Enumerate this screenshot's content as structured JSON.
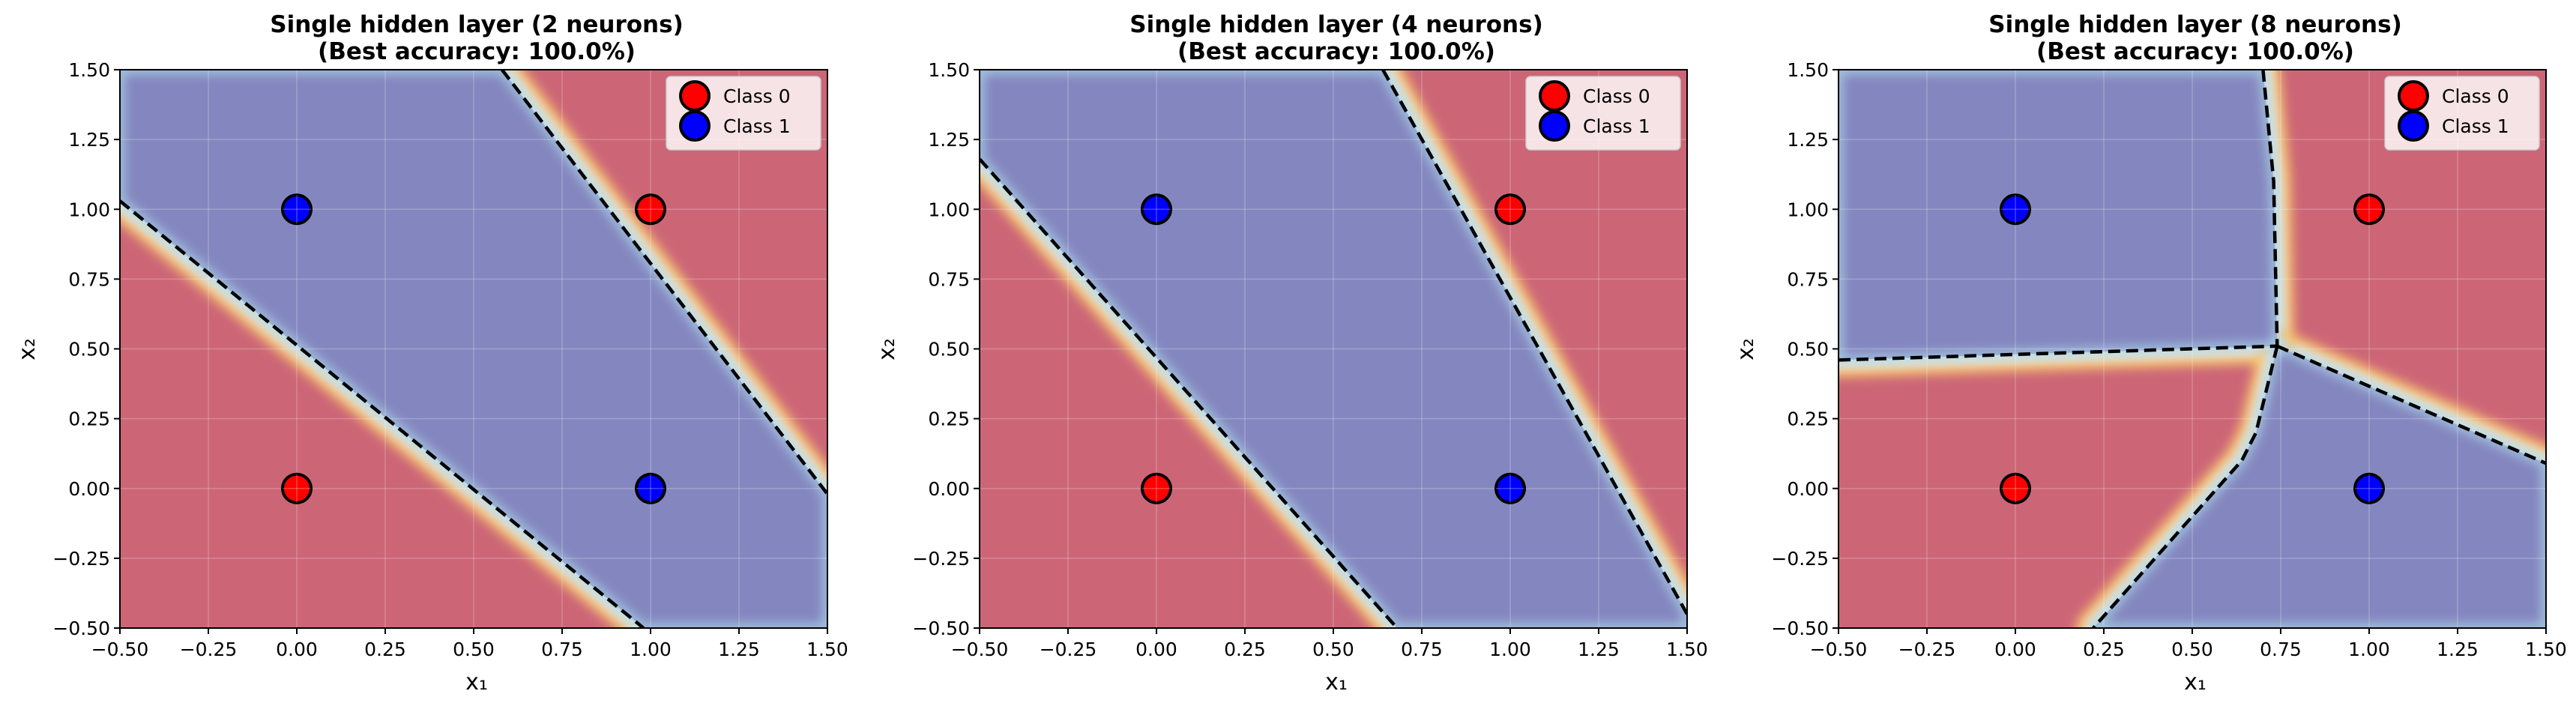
{
  "colors": {
    "class0": "#ff0000",
    "class1": "#0000ff",
    "region_class0": "#cc6677",
    "region_class1": "#8487bf",
    "boundary": "#000000"
  },
  "chart_data": [
    {
      "type": "contour",
      "title_line1": "Single hidden layer (2 neurons)",
      "title_line2": "(Best accuracy: 100.0%)",
      "xlabel": "x₁",
      "ylabel": "x₂",
      "xlim": [
        -0.5,
        1.5
      ],
      "ylim": [
        -0.5,
        1.5
      ],
      "xticks": [
        "−0.50",
        "−0.25",
        "0.00",
        "0.25",
        "0.50",
        "0.75",
        "1.00",
        "1.25",
        "1.50"
      ],
      "yticks": [
        "−0.50",
        "−0.25",
        "0.00",
        "0.25",
        "0.50",
        "0.75",
        "1.00",
        "1.25",
        "1.50"
      ],
      "grid": true,
      "legend": {
        "position": "top-right",
        "entries": [
          "Class 0",
          "Class 1"
        ]
      },
      "points": [
        {
          "x": 0,
          "y": 0,
          "class": 0
        },
        {
          "x": 0,
          "y": 1,
          "class": 1
        },
        {
          "x": 1,
          "y": 0,
          "class": 1
        },
        {
          "x": 1,
          "y": 1,
          "class": 0
        }
      ],
      "decision_boundaries": [
        [
          [
            -0.5,
            1.03
          ],
          [
            0.98,
            -0.5
          ]
        ],
        [
          [
            0.58,
            1.5
          ],
          [
            1.5,
            -0.02
          ]
        ]
      ],
      "class1_region": [
        [
          -0.5,
          1.5
        ],
        [
          0.58,
          1.5
        ],
        [
          1.5,
          -0.02
        ],
        [
          1.5,
          -0.5
        ],
        [
          0.98,
          -0.5
        ],
        [
          -0.5,
          1.03
        ]
      ]
    },
    {
      "type": "contour",
      "title_line1": "Single hidden layer (4 neurons)",
      "title_line2": "(Best accuracy: 100.0%)",
      "xlabel": "x₁",
      "ylabel": "x₂",
      "xlim": [
        -0.5,
        1.5
      ],
      "ylim": [
        -0.5,
        1.5
      ],
      "xticks": [
        "−0.50",
        "−0.25",
        "0.00",
        "0.25",
        "0.50",
        "0.75",
        "1.00",
        "1.25",
        "1.50"
      ],
      "yticks": [
        "−0.50",
        "−0.25",
        "0.00",
        "0.25",
        "0.50",
        "0.75",
        "1.00",
        "1.25",
        "1.50"
      ],
      "grid": true,
      "legend": {
        "position": "top-right",
        "entries": [
          "Class 0",
          "Class 1"
        ]
      },
      "points": [
        {
          "x": 0,
          "y": 0,
          "class": 0
        },
        {
          "x": 0,
          "y": 1,
          "class": 1
        },
        {
          "x": 1,
          "y": 0,
          "class": 1
        },
        {
          "x": 1,
          "y": 1,
          "class": 0
        }
      ],
      "decision_boundaries": [
        [
          [
            -0.5,
            1.18
          ],
          [
            0.68,
            -0.5
          ]
        ],
        [
          [
            0.64,
            1.5
          ],
          [
            1.5,
            -0.45
          ]
        ]
      ],
      "class1_region": [
        [
          -0.5,
          1.5
        ],
        [
          0.64,
          1.5
        ],
        [
          1.5,
          -0.45
        ],
        [
          1.5,
          -0.5
        ],
        [
          0.68,
          -0.5
        ],
        [
          -0.5,
          1.18
        ]
      ]
    },
    {
      "type": "contour",
      "title_line1": "Single hidden layer (8 neurons)",
      "title_line2": "(Best accuracy: 100.0%)",
      "xlabel": "x₁",
      "ylabel": "x₂",
      "xlim": [
        -0.5,
        1.5
      ],
      "ylim": [
        -0.5,
        1.5
      ],
      "xticks": [
        "−0.50",
        "−0.25",
        "0.00",
        "0.25",
        "0.50",
        "0.75",
        "1.00",
        "1.25",
        "1.50"
      ],
      "yticks": [
        "−0.50",
        "−0.25",
        "0.00",
        "0.25",
        "0.50",
        "0.75",
        "1.00",
        "1.25",
        "1.50"
      ],
      "grid": true,
      "legend": {
        "position": "top-right",
        "entries": [
          "Class 0",
          "Class 1"
        ]
      },
      "points": [
        {
          "x": 0,
          "y": 0,
          "class": 0
        },
        {
          "x": 0,
          "y": 1,
          "class": 1
        },
        {
          "x": 1,
          "y": 0,
          "class": 1
        },
        {
          "x": 1,
          "y": 1,
          "class": 0
        }
      ],
      "decision_boundaries": [
        [
          [
            -0.5,
            0.46
          ],
          [
            0.74,
            0.51
          ]
        ],
        [
          [
            0.7,
            1.5
          ],
          [
            0.73,
            1.1
          ],
          [
            0.74,
            0.51
          ]
        ],
        [
          [
            0.74,
            0.51
          ],
          [
            1.5,
            0.09
          ]
        ],
        [
          [
            0.74,
            0.51
          ],
          [
            0.68,
            0.2
          ],
          [
            0.64,
            0.1
          ],
          [
            0.22,
            -0.5
          ]
        ]
      ],
      "class1_regions": [
        [
          [
            -0.5,
            1.5
          ],
          [
            0.7,
            1.5
          ],
          [
            0.73,
            1.1
          ],
          [
            0.74,
            0.51
          ],
          [
            -0.5,
            0.46
          ]
        ],
        [
          [
            0.74,
            0.51
          ],
          [
            1.5,
            0.09
          ],
          [
            1.5,
            -0.5
          ],
          [
            0.22,
            -0.5
          ],
          [
            0.64,
            0.1
          ],
          [
            0.68,
            0.2
          ]
        ]
      ]
    }
  ]
}
